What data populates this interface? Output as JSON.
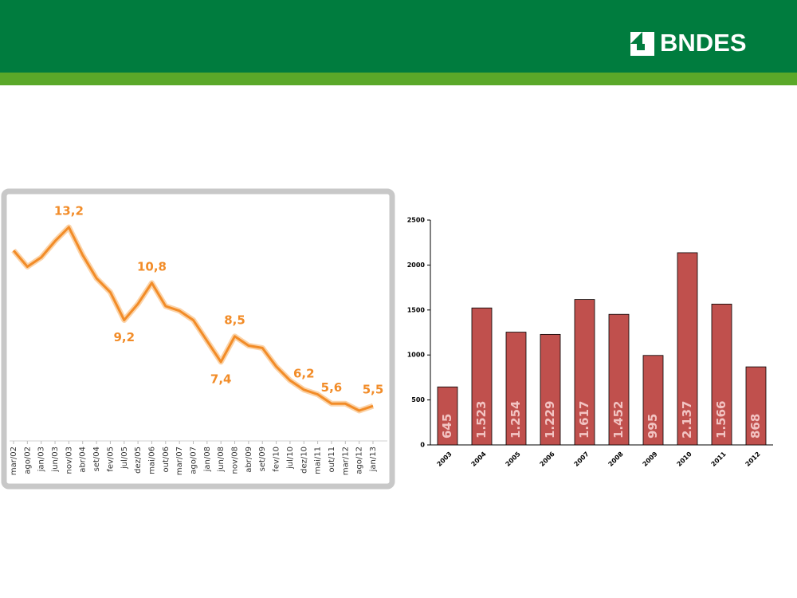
{
  "logo": "BNDES",
  "chart_data": [
    {
      "type": "line",
      "color": "#f28c28",
      "categories": [
        "mar/02",
        "ago/02",
        "jan/03",
        "jun/03",
        "nov/03",
        "abr/04",
        "set/04",
        "fev/05",
        "jul/05",
        "dez/05",
        "mai/06",
        "out/06",
        "mar/07",
        "ago/07",
        "jan/08",
        "jun/08",
        "nov/08",
        "abr/09",
        "set/09",
        "fev/10",
        "jul/10",
        "dez/10",
        "mai/11",
        "out/11",
        "mar/12",
        "ago/12",
        "jan/13"
      ],
      "values": [
        12.2,
        11.5,
        11.9,
        12.6,
        13.2,
        12.0,
        11.0,
        10.4,
        9.2,
        9.9,
        10.8,
        9.8,
        9.6,
        9.2,
        8.3,
        7.4,
        8.5,
        8.1,
        8.0,
        7.2,
        6.6,
        6.2,
        6.0,
        5.6,
        5.6,
        5.3,
        5.5
      ],
      "value_labels": [
        null,
        null,
        null,
        null,
        "13,2",
        null,
        null,
        null,
        "9,2",
        null,
        "10,8",
        null,
        null,
        null,
        null,
        "7,4",
        "8,5",
        null,
        null,
        null,
        null,
        "6,2",
        null,
        "5,6",
        null,
        null,
        "5,5"
      ]
    },
    {
      "type": "bar",
      "color": "#c0504d",
      "categories": [
        "2003",
        "2004",
        "2005",
        "2006",
        "2007",
        "2008",
        "2009",
        "2010",
        "2011",
        "2012"
      ],
      "values": [
        645,
        1523,
        1254,
        1229,
        1617,
        1452,
        995,
        2137,
        1566,
        868
      ],
      "value_labels": [
        "645",
        "1.523",
        "1.254",
        "1.229",
        "1.617",
        "1.452",
        "995",
        "2.137",
        "1.566",
        "868"
      ],
      "ylim": [
        0,
        2500
      ],
      "yticks": [
        0,
        500,
        1000,
        1500,
        2000,
        2500
      ]
    }
  ]
}
